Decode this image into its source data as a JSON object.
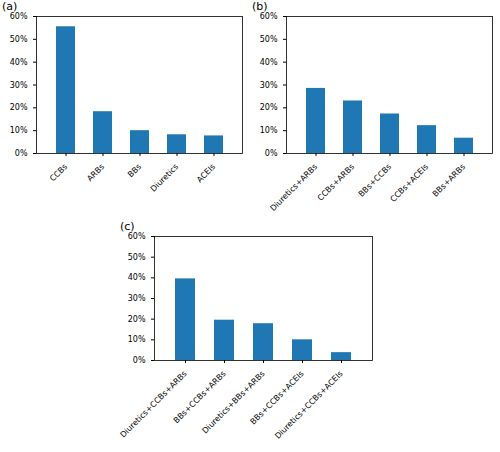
{
  "chart_data": [
    {
      "type": "bar",
      "title": "(a)",
      "categories": [
        "CCBs",
        "ARBs",
        "BBs",
        "Diuretics",
        "ACEIs"
      ],
      "values": [
        55.5,
        18.3,
        10.0,
        8.2,
        7.7
      ],
      "color": "#1f77b4",
      "ylim": [
        0,
        60
      ],
      "yticks": [
        {
          "value": 0,
          "label": "0%"
        },
        {
          "value": 10,
          "label": "10%"
        },
        {
          "value": 20,
          "label": "20%"
        },
        {
          "value": 30,
          "label": "30%"
        },
        {
          "value": 40,
          "label": "40%"
        },
        {
          "value": 50,
          "label": "50%"
        },
        {
          "value": 60,
          "label": "60%"
        }
      ],
      "grid": false
    },
    {
      "type": "bar",
      "title": "(b)",
      "categories": [
        "Diuretics+ARBs",
        "CCBs+ARBs",
        "BBs+CCBs",
        "CCBs+ACEIs",
        "BBs+ARBs"
      ],
      "values": [
        28.5,
        23.0,
        17.3,
        12.2,
        6.7
      ],
      "color": "#1f77b4",
      "ylim": [
        0,
        60
      ],
      "yticks": [
        {
          "value": 0,
          "label": "0%"
        },
        {
          "value": 10,
          "label": "10%"
        },
        {
          "value": 20,
          "label": "20%"
        },
        {
          "value": 30,
          "label": "30%"
        },
        {
          "value": 40,
          "label": "40%"
        },
        {
          "value": 50,
          "label": "50%"
        },
        {
          "value": 60,
          "label": "60%"
        }
      ],
      "grid": false
    },
    {
      "type": "bar",
      "title": "(c)",
      "categories": [
        "Diuretics+CCBs+ARBs",
        "BBs+CCBs+ARBs",
        "Diuretics+BBs+ARBs",
        "BBs+CCBs+ACEIs",
        "Diuretics+CCBs+ACEIs"
      ],
      "values": [
        39.5,
        19.5,
        17.8,
        10.0,
        3.8
      ],
      "color": "#1f77b4",
      "ylim": [
        0,
        60
      ],
      "yticks": [
        {
          "value": 0,
          "label": "0%"
        },
        {
          "value": 10,
          "label": "10%"
        },
        {
          "value": 20,
          "label": "20%"
        },
        {
          "value": 30,
          "label": "30%"
        },
        {
          "value": 40,
          "label": "40%"
        },
        {
          "value": 50,
          "label": "50%"
        },
        {
          "value": 60,
          "label": "60%"
        }
      ],
      "grid": false
    }
  ]
}
